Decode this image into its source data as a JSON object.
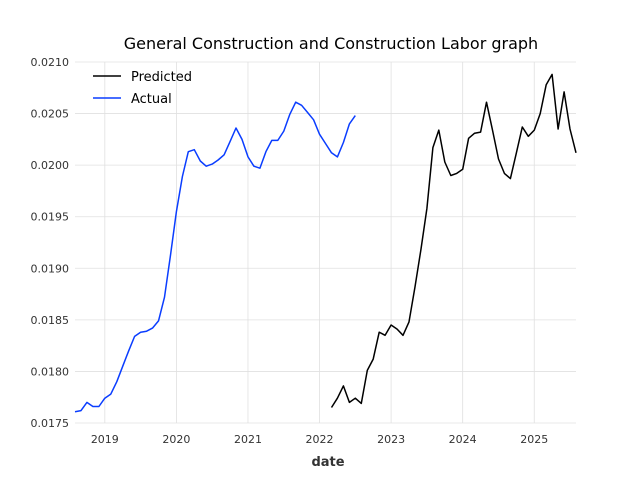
{
  "chart_data": {
    "type": "line",
    "title": "General Construction and Construction Labor graph",
    "xlabel": "date",
    "ylabel": "",
    "xlim": [
      "2018-08-01",
      "2025-08-01"
    ],
    "ylim": [
      0.0175,
      0.021
    ],
    "x_ticks": [
      "2019",
      "2020",
      "2021",
      "2022",
      "2023",
      "2024",
      "2025"
    ],
    "y_ticks": [
      "0.0175",
      "0.0180",
      "0.0185",
      "0.0190",
      "0.0195",
      "0.0200",
      "0.0205",
      "0.0210"
    ],
    "grid": true,
    "legend_position": "top-left",
    "series": [
      {
        "name": "Predicted",
        "color": "#000000",
        "points": [
          [
            "2022-03-01",
            0.01765
          ],
          [
            "2022-04-01",
            0.01774
          ],
          [
            "2022-05-01",
            0.01786
          ],
          [
            "2022-06-01",
            0.0177
          ],
          [
            "2022-07-01",
            0.01774
          ],
          [
            "2022-08-01",
            0.01769
          ],
          [
            "2022-09-01",
            0.01801
          ],
          [
            "2022-10-01",
            0.01812
          ],
          [
            "2022-11-01",
            0.01838
          ],
          [
            "2022-12-01",
            0.01835
          ],
          [
            "2023-01-01",
            0.01845
          ],
          [
            "2023-02-01",
            0.01841
          ],
          [
            "2023-03-01",
            0.01835
          ],
          [
            "2023-04-01",
            0.01848
          ],
          [
            "2023-05-01",
            0.01882
          ],
          [
            "2023-06-01",
            0.01918
          ],
          [
            "2023-07-01",
            0.01958
          ],
          [
            "2023-08-01",
            0.02017
          ],
          [
            "2023-09-01",
            0.02034
          ],
          [
            "2023-10-01",
            0.02003
          ],
          [
            "2023-11-01",
            0.0199
          ],
          [
            "2023-12-01",
            0.01992
          ],
          [
            "2024-01-01",
            0.01996
          ],
          [
            "2024-02-01",
            0.02026
          ],
          [
            "2024-03-01",
            0.02031
          ],
          [
            "2024-04-01",
            0.02032
          ],
          [
            "2024-05-01",
            0.02061
          ],
          [
            "2024-06-01",
            0.02034
          ],
          [
            "2024-07-01",
            0.02006
          ],
          [
            "2024-08-01",
            0.01992
          ],
          [
            "2024-09-01",
            0.01987
          ],
          [
            "2024-10-01",
            0.02012
          ],
          [
            "2024-11-01",
            0.02037
          ],
          [
            "2024-12-01",
            0.02028
          ],
          [
            "2025-01-01",
            0.02034
          ],
          [
            "2025-02-01",
            0.0205
          ],
          [
            "2025-03-01",
            0.02078
          ],
          [
            "2025-04-01",
            0.02088
          ],
          [
            "2025-05-01",
            0.02035
          ],
          [
            "2025-06-01",
            0.02071
          ],
          [
            "2025-07-01",
            0.02035
          ],
          [
            "2025-08-01",
            0.02012
          ]
        ]
      },
      {
        "name": "Actual",
        "color": "#0a3dff",
        "points": [
          [
            "2018-08-01",
            0.01761
          ],
          [
            "2018-09-01",
            0.01762
          ],
          [
            "2018-10-01",
            0.0177
          ],
          [
            "2018-11-01",
            0.01766
          ],
          [
            "2018-12-01",
            0.01766
          ],
          [
            "2019-01-01",
            0.01774
          ],
          [
            "2019-02-01",
            0.01778
          ],
          [
            "2019-03-01",
            0.0179
          ],
          [
            "2019-04-01",
            0.01805
          ],
          [
            "2019-05-01",
            0.0182
          ],
          [
            "2019-06-01",
            0.01834
          ],
          [
            "2019-07-01",
            0.01838
          ],
          [
            "2019-08-01",
            0.01839
          ],
          [
            "2019-09-01",
            0.01842
          ],
          [
            "2019-10-01",
            0.01849
          ],
          [
            "2019-11-01",
            0.01872
          ],
          [
            "2019-12-01",
            0.01912
          ],
          [
            "2020-01-01",
            0.01955
          ],
          [
            "2020-02-01",
            0.01989
          ],
          [
            "2020-03-01",
            0.02013
          ],
          [
            "2020-04-01",
            0.02015
          ],
          [
            "2020-05-01",
            0.02004
          ],
          [
            "2020-06-01",
            0.01999
          ],
          [
            "2020-07-01",
            0.02001
          ],
          [
            "2020-08-01",
            0.02005
          ],
          [
            "2020-09-01",
            0.0201
          ],
          [
            "2020-10-01",
            0.02023
          ],
          [
            "2020-11-01",
            0.02036
          ],
          [
            "2020-12-01",
            0.02025
          ],
          [
            "2021-01-01",
            0.02008
          ],
          [
            "2021-02-01",
            0.01999
          ],
          [
            "2021-03-01",
            0.01997
          ],
          [
            "2021-04-01",
            0.02013
          ],
          [
            "2021-05-01",
            0.02024
          ],
          [
            "2021-06-01",
            0.02024
          ],
          [
            "2021-07-01",
            0.02033
          ],
          [
            "2021-08-01",
            0.02049
          ],
          [
            "2021-09-01",
            0.02061
          ],
          [
            "2021-10-01",
            0.02058
          ],
          [
            "2021-11-01",
            0.02051
          ],
          [
            "2021-12-01",
            0.02044
          ],
          [
            "2022-01-01",
            0.0203
          ],
          [
            "2022-02-01",
            0.02021
          ],
          [
            "2022-03-01",
            0.02012
          ],
          [
            "2022-04-01",
            0.02008
          ],
          [
            "2022-05-01",
            0.02022
          ],
          [
            "2022-06-01",
            0.0204
          ],
          [
            "2022-07-01",
            0.02048
          ]
        ]
      }
    ]
  }
}
